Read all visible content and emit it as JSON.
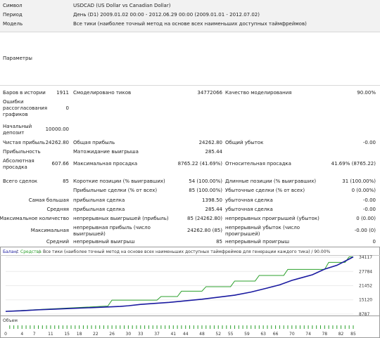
{
  "header": {
    "symbol_label": "Символ",
    "symbol_value": "USDCAD (US Dollar vs Canadian Dollar)",
    "period_label": "Период",
    "period_value": "День (D1) 2009.01.02 00:00 - 2012.06.29 00:00 (2009.01.01 - 2012.07.02)",
    "model_label": "Модель",
    "model_value": "Все тики (наиболее точный метод на основе всех наименьших доступных таймфреймов)",
    "params_label": "Параметры"
  },
  "stats": {
    "bars_label": "Баров в истории",
    "bars_value": "1911",
    "ticks_label": "Смоделировано тиков",
    "ticks_value": "34772066",
    "quality_label": "Качество моделирования",
    "quality_value": "90.00%",
    "errors_label": "Ошибки рассогласования графиков",
    "errors_value": "0",
    "deposit_label": "Начальный депозит",
    "deposit_value": "10000.00",
    "net_profit_label": "Чистая прибыль",
    "net_profit_value": "24262.80",
    "gross_profit_label": "Общая прибыль",
    "gross_profit_value": "24262.80",
    "gross_loss_label": "Общий убыток",
    "gross_loss_value": "-0.00",
    "profit_factor_label": "Прибыльность",
    "profit_factor_value": "",
    "expected_payoff_label": "Матожидание выигрыша",
    "expected_payoff_value": "285.44",
    "abs_dd_label": "Абсолютная просадка",
    "abs_dd_value": "607.66",
    "max_dd_label": "Максимальная просадка",
    "max_dd_value": "8765.22 (41.69%)",
    "rel_dd_label": "Относительная просадка",
    "rel_dd_value": "41.69% (8765.22)",
    "total_trades_label": "Всего сделок",
    "total_trades_value": "85",
    "short_label": "Короткие позиции (% выигравших)",
    "short_value": "54 (100.00%)",
    "long_label": "Длинные позиции (% выигравших)",
    "long_value": "31 (100.00%)",
    "profit_trades_label": "Прибыльные сделки (% от всех)",
    "profit_trades_value": "85 (100.00%)",
    "loss_trades_label": "Убыточные сделки (% от всех)",
    "loss_trades_value": "0 (0.00%)",
    "largest_label": "Самая большая",
    "largest_profit_label": "прибыльная сделка",
    "largest_profit_value": "1398.50",
    "largest_loss_label": "убыточная сделка",
    "largest_loss_value": "-0.00",
    "average_label": "Средняя",
    "average_profit_label": "прибыльная сделка",
    "average_profit_value": "285.44",
    "average_loss_label": "убыточная сделка",
    "average_loss_value": "-0.00",
    "max_count_label": "Максимальное количество",
    "max_cons_wins_label": "непрерывных выигрышей (прибыль)",
    "max_cons_wins_value": "85 (24262.80)",
    "max_cons_losses_label": "непрерывных проигрышей (убыток)",
    "max_cons_losses_value": "0 (0.00)",
    "maximal_label": "Максимальная",
    "max_cons_profit_label": "непрерывная прибыль (число выигрышей)",
    "max_cons_profit_value": "24262.80 (85)",
    "max_cons_loss_label": "непрерывный убыток (число проигрышей)",
    "max_cons_loss_value": "-0.00 (0)",
    "avg_label": "Средний",
    "avg_cons_wins_label": "непрерывный выигрыш",
    "avg_cons_wins_value": "85",
    "avg_cons_losses_label": "непрерывный проигрыш",
    "avg_cons_losses_value": "0"
  },
  "chart_data": {
    "type": "line",
    "header_text": "Все тики (наиболее точный метод на основе всех наименьших доступных таймфреймов для генерации каждого тика) / 90.00%",
    "legend": [
      {
        "name": "Баланс",
        "color": "#1a1aa0"
      },
      {
        "name": "Средства",
        "color": "#2ca02c"
      }
    ],
    "volume_label": "Объем",
    "y_ticks": [
      34117,
      27784,
      21452,
      15120,
      8787
    ],
    "x_ticks": [
      0,
      4,
      7,
      11,
      15,
      18,
      22,
      26,
      30,
      33,
      37,
      41,
      44,
      48,
      52,
      55,
      59,
      63,
      66,
      70,
      74,
      78,
      82,
      85
    ],
    "ylim": [
      8787,
      34117
    ],
    "xlim": [
      0,
      85
    ],
    "series": [
      {
        "name": "Баланс",
        "x": [
          0,
          4,
          8,
          12,
          16,
          20,
          24,
          28,
          30,
          33,
          36,
          40,
          44,
          48,
          52,
          56,
          60,
          64,
          67,
          70,
          72,
          75,
          78,
          81,
          84,
          85
        ],
        "y": [
          10000,
          10300,
          10700,
          11000,
          11300,
          11600,
          11900,
          12200,
          12500,
          13100,
          13500,
          14000,
          14700,
          15400,
          16300,
          17200,
          18600,
          20400,
          21800,
          23800,
          24800,
          26300,
          28800,
          30500,
          33300,
          34262.8
        ]
      },
      {
        "name": "Средства",
        "x": [
          0,
          10,
          20,
          25,
          26,
          37,
          38,
          42,
          43,
          48,
          49,
          55,
          56,
          61,
          62,
          68,
          69,
          78,
          79,
          83,
          84,
          85
        ],
        "y": [
          10000,
          11000,
          11900,
          12400,
          15000,
          15000,
          16600,
          16600,
          19000,
          19000,
          21000,
          21000,
          23500,
          23500,
          26000,
          26000,
          28700,
          28700,
          31800,
          31800,
          34262.8,
          34262.8
        ]
      }
    ]
  }
}
